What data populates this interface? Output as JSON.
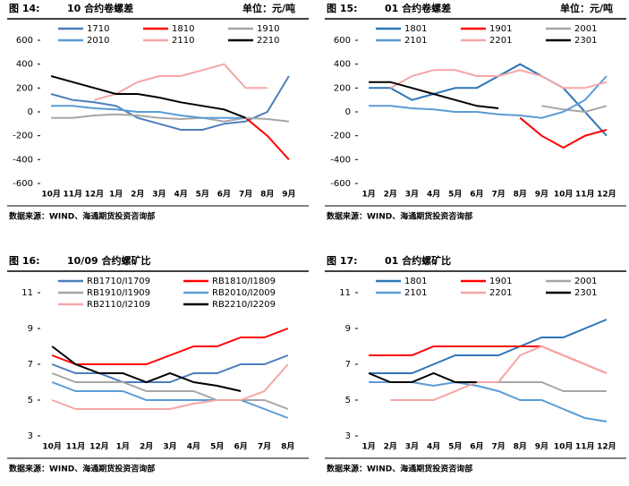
{
  "chart_data": [
    {
      "type": "line",
      "figure": "图 14:",
      "title": "10 合约卷螺差",
      "unit": "单位：元/吨",
      "source": "数据来源：WIND、海通期货投资咨询部",
      "categories": [
        "10月",
        "11月",
        "12月",
        "1月",
        "2月",
        "3月",
        "4月",
        "5月",
        "6月",
        "7月",
        "8月",
        "9月"
      ],
      "ylim": [
        -600,
        600
      ],
      "yticks": [
        -600,
        -400,
        -200,
        0,
        200,
        400,
        600
      ],
      "series": [
        {
          "name": "1710",
          "color": "#4a7ebb",
          "values": [
            150,
            100,
            80,
            50,
            -50,
            -100,
            -150,
            -150,
            -100,
            -80,
            0,
            300
          ]
        },
        {
          "name": "1810",
          "color": "#ff0000",
          "values": [
            null,
            null,
            null,
            null,
            null,
            null,
            null,
            null,
            null,
            -50,
            -200,
            -400
          ]
        },
        {
          "name": "1910",
          "color": "#a6a6a6",
          "values": [
            -50,
            -50,
            -30,
            -20,
            -30,
            -50,
            -60,
            -50,
            -80,
            -50,
            -60,
            -80
          ]
        },
        {
          "name": "2010",
          "color": "#5b9bd5",
          "values": [
            50,
            50,
            30,
            20,
            0,
            0,
            -30,
            -50,
            -50,
            -50,
            null,
            null
          ]
        },
        {
          "name": "2110",
          "color": "#f4a6a6",
          "values": [
            null,
            null,
            100,
            150,
            250,
            300,
            300,
            350,
            400,
            200,
            200,
            null
          ]
        },
        {
          "name": "2210",
          "color": "#000000",
          "values": [
            300,
            250,
            200,
            150,
            150,
            120,
            80,
            50,
            20,
            -50,
            null,
            null
          ]
        }
      ]
    },
    {
      "type": "line",
      "figure": "图 15:",
      "title": "01 合约卷螺差",
      "unit": "单位：元/吨",
      "source": "数据来源：WIND、海通期货投资咨询部",
      "categories": [
        "1月",
        "2月",
        "3月",
        "4月",
        "5月",
        "6月",
        "7月",
        "8月",
        "9月",
        "10月",
        "11月",
        "12月"
      ],
      "ylim": [
        -600,
        600
      ],
      "yticks": [
        -600,
        -400,
        -200,
        0,
        200,
        400,
        600
      ],
      "series": [
        {
          "name": "1801",
          "color": "#2e75b6",
          "values": [
            200,
            200,
            100,
            150,
            200,
            200,
            300,
            400,
            300,
            200,
            0,
            -200
          ]
        },
        {
          "name": "1901",
          "color": "#ff0000",
          "values": [
            null,
            null,
            null,
            null,
            null,
            null,
            null,
            -50,
            -200,
            -300,
            -200,
            -150
          ]
        },
        {
          "name": "2001",
          "color": "#a6a6a6",
          "values": [
            null,
            null,
            null,
            null,
            null,
            null,
            null,
            null,
            50,
            20,
            0,
            50
          ]
        },
        {
          "name": "2101",
          "color": "#5b9bd5",
          "values": [
            50,
            50,
            30,
            20,
            0,
            0,
            -20,
            -30,
            -50,
            0,
            100,
            300
          ]
        },
        {
          "name": "2201",
          "color": "#f4a6a6",
          "values": [
            null,
            200,
            300,
            350,
            350,
            300,
            300,
            350,
            300,
            200,
            200,
            250
          ]
        },
        {
          "name": "2301",
          "color": "#000000",
          "values": [
            250,
            250,
            200,
            150,
            100,
            50,
            30,
            null,
            null,
            null,
            null,
            null
          ]
        }
      ]
    },
    {
      "type": "line",
      "figure": "图 16:",
      "title": "10/09 合约螺矿比",
      "source": "数据来源：WIND、海通期货投资咨询部",
      "categories": [
        "10月",
        "11月",
        "12月",
        "1月",
        "2月",
        "3月",
        "4月",
        "5月",
        "6月",
        "7月",
        "8月"
      ],
      "ylim": [
        3,
        11
      ],
      "yticks": [
        3,
        5,
        7,
        9,
        11
      ],
      "series": [
        {
          "name": "RB1710/I1709",
          "color": "#4a7ebb",
          "values": [
            7,
            6.5,
            6.5,
            6,
            6,
            6,
            6.5,
            6.5,
            7,
            7,
            7.5
          ]
        },
        {
          "name": "RB1810/I1809",
          "color": "#ff0000",
          "values": [
            7.5,
            7,
            7,
            7,
            7,
            7.5,
            8,
            8,
            8.5,
            8.5,
            9
          ]
        },
        {
          "name": "RB1910/I1909",
          "color": "#a6a6a6",
          "values": [
            6.5,
            6,
            6,
            6,
            5.5,
            5.5,
            5.5,
            5,
            5,
            5,
            4.5
          ]
        },
        {
          "name": "RB2010/I2009",
          "color": "#5b9bd5",
          "values": [
            6,
            5.5,
            5.5,
            5.5,
            5,
            5,
            5,
            5,
            5,
            4.5,
            4
          ]
        },
        {
          "name": "RB2110/I2109",
          "color": "#f4a6a6",
          "values": [
            5,
            4.5,
            4.5,
            4.5,
            4.5,
            4.5,
            4.8,
            5,
            5,
            5.5,
            7
          ]
        },
        {
          "name": "RB2210/I2209",
          "color": "#000000",
          "values": [
            8,
            7,
            6.5,
            6.5,
            6,
            6.5,
            6,
            5.8,
            5.5,
            null,
            null
          ]
        }
      ]
    },
    {
      "type": "line",
      "figure": "图 17:",
      "title": "01 合约螺矿比",
      "source": "数据来源：WIND、海通期货投资咨询部",
      "categories": [
        "1月",
        "2月",
        "3月",
        "4月",
        "5月",
        "6月",
        "7月",
        "8月",
        "9月",
        "10月",
        "11月",
        "12月"
      ],
      "ylim": [
        3,
        11
      ],
      "yticks": [
        3,
        5,
        7,
        9,
        11
      ],
      "series": [
        {
          "name": "1801",
          "color": "#2e75b6",
          "values": [
            6.5,
            6.5,
            6.5,
            7,
            7.5,
            7.5,
            7.5,
            8,
            8.5,
            8.5,
            9,
            9.5
          ]
        },
        {
          "name": "1901",
          "color": "#ff0000",
          "values": [
            7.5,
            7.5,
            7.5,
            8,
            8,
            8,
            8,
            8,
            8,
            7.5,
            7,
            6.5
          ]
        },
        {
          "name": "2001",
          "color": "#a6a6a6",
          "values": [
            null,
            null,
            null,
            null,
            null,
            null,
            6,
            6,
            6,
            5.5,
            5.5,
            5.5
          ]
        },
        {
          "name": "2101",
          "color": "#5b9bd5",
          "values": [
            6,
            6,
            6,
            5.8,
            6,
            5.8,
            5.5,
            5,
            5,
            4.5,
            4,
            3.8
          ]
        },
        {
          "name": "2201",
          "color": "#f4a6a6",
          "values": [
            null,
            5,
            5,
            5,
            5.5,
            6,
            6,
            7.5,
            8,
            7.5,
            7,
            6.5
          ]
        },
        {
          "name": "2301",
          "color": "#000000",
          "values": [
            6.5,
            6,
            6,
            6.5,
            6,
            6,
            null,
            null,
            null,
            null,
            null,
            null
          ]
        }
      ]
    }
  ]
}
